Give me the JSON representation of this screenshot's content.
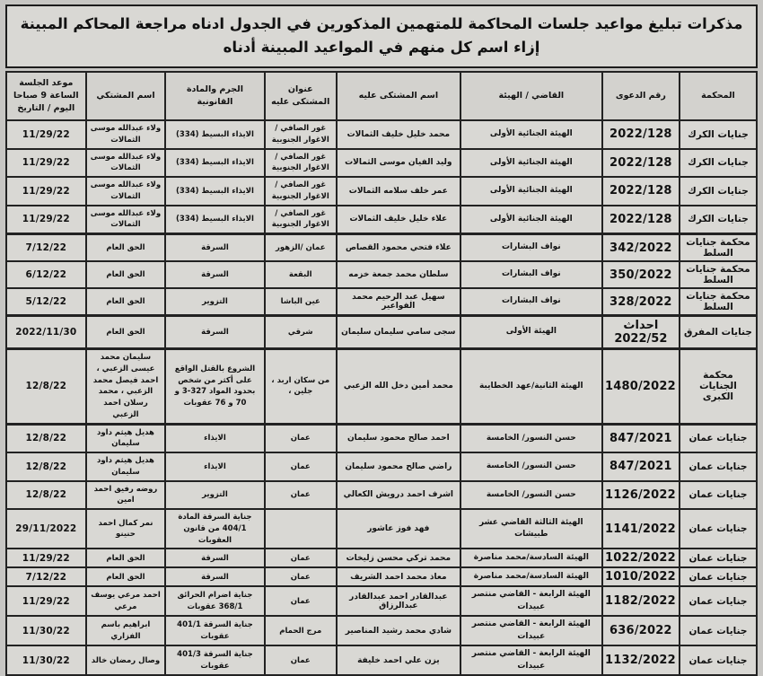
{
  "title": "مذكرات تبليغ مواعيد جلسات المحاكمة للمتهمين المذكورين في الجدول ادناه مراجعة المحاكم المبينة إزاء اسم كل منهم في المواعيد المبينة أدناه",
  "table": {
    "columns": [
      {
        "key": "court",
        "label": "المحكمة"
      },
      {
        "key": "case_number",
        "label": "رقم الدعوى"
      },
      {
        "key": "judge_panel",
        "label": "القاضي / الهيئة"
      },
      {
        "key": "defendant_name",
        "label": "اسم المشتكى عليه"
      },
      {
        "key": "defendant_address",
        "label": "عنوان المشتكى عليه"
      },
      {
        "key": "crime_article",
        "label": "الجرم والمادة القانونية"
      },
      {
        "key": "complainant_name",
        "label": "اسم المشتكي"
      },
      {
        "key": "session_date",
        "label": "موعد الجلسة الساعة 9 صباحا اليوم / التاريخ"
      }
    ],
    "rows": [
      [
        "جنايات الكرك",
        "2022/128",
        "الهيئة الجنائية الأولى",
        "محمد خليل خليف الثمالات",
        "غور الصافي /الاغوار الجنوبية",
        "الايذاء البسيط (334)",
        "ولاء عبدالله موسى الثمالات",
        "11/29/22"
      ],
      [
        "جنايات الكرك",
        "2022/128",
        "الهيئة الجنائية الأولى",
        "وليد الفيان موسى الثمالات",
        "غور الصافي /الاغوار الجنوبية",
        "الايذاء البسيط (334)",
        "ولاء عبدالله موسى الثمالات",
        "11/29/22"
      ],
      [
        "جنايات الكرك",
        "2022/128",
        "الهيئة الجنائية الأولى",
        "عمر خلف سلامه الثمالات",
        "غور الصافي /الاغوار الجنوبية",
        "الايذاء البسيط (334)",
        "ولاء عبدالله موسى الثمالات",
        "11/29/22"
      ],
      [
        "جنايات الكرك",
        "2022/128",
        "الهيئة الجنائية الأولى",
        "علاء خليل خليف الثمالات",
        "غور الصافي /الاغوار الجنوبية",
        "الايذاء البسيط (334)",
        "ولاء عبدالله موسى الثمالات",
        "11/29/22"
      ],
      [
        "محكمة جنايات السلط",
        "342/2022",
        "نواف البشارات",
        "علاء فتحي محمود القصاص",
        "عمان /الزهور",
        "السرقة",
        "الحق العام",
        "7/12/22"
      ],
      [
        "محكمة جنايات السلط",
        "350/2022",
        "نواف البشارات",
        "سلطان محمد جمعة خزمه",
        "البقعة",
        "السرقة",
        "الحق العام",
        "6/12/22"
      ],
      [
        "محكمة جنايات السلط",
        "328/2022",
        "نواف البشارات",
        "سهيل عبد الرحيم محمد الفواعير",
        "عين الباشا",
        "التزوير",
        "الحق العام",
        "5/12/22"
      ],
      [
        "جنايات المفرق",
        "احداث 2022/52",
        "الهيئة الأولى",
        "سجى سامي سليمان سليمان",
        "شرقي",
        "السرقة",
        "الحق العام",
        "2022/11/30"
      ],
      [
        "محكمة الجنايات الكبرى",
        "1480/2022",
        "الهيئة الثانية/عهد الخطايبة",
        "محمد أمين دخل الله الزعبي",
        "من سكان اربد ، جلين ،",
        "الشروع بالقتل الواقع على أكثر من شخص بحدود المواد 327-3 و 70 و 76 عقوبات",
        "سليمان محمد عيسى الزعبي ، احمد فيصل محمد الزعبي ، محمد رسلان احمد الزعبي",
        "12/8/22"
      ],
      [
        "جنايات عمان",
        "847/2021",
        "حسن النسور/ الخامسة",
        "احمد صالح محمود سليمان",
        "عمان",
        "الايذاء",
        "هديل هيثم داود سليمان",
        "12/8/22"
      ],
      [
        "جنايات عمان",
        "847/2021",
        "حسن النسور/ الخامسة",
        "راضي صالح محمود سليمان",
        "عمان",
        "الايذاء",
        "هديل هيثم داود سليمان",
        "12/8/22"
      ],
      [
        "جنايات عمان",
        "1126/2022",
        "حسن النسور/ الخامسة",
        "اشرف احمد درويش الكعالي",
        "عمان",
        "التزوير",
        "روضه رفيق احمد امين",
        "12/8/22"
      ],
      [
        "جنايات عمان",
        "1141/2022",
        "الهيئة الثالثة القاضي عشر طبيشات",
        "فهد فوز عاشور",
        "",
        "جناية السرقة المادة 404/1 من قانون العقوبات",
        "نمر كمال احمد حنينو",
        "29/11/2022"
      ],
      [
        "جنايات عمان",
        "1022/2022",
        "الهيئة السادسة/محمد مناصرة",
        "محمد تركي محسن زليخات",
        "عمان",
        "السرقة",
        "الحق العام",
        "11/29/22"
      ],
      [
        "جنايات عمان",
        "1010/2022",
        "الهيئة السادسة/محمد مناصرة",
        "معاذ محمد احمد الشريف",
        "عمان",
        "السرقة",
        "الحق العام",
        "7/12/22"
      ],
      [
        "جنايات عمان",
        "1182/2022",
        "الهيئة الرابعة - القاضي منتصر عبيدات",
        "عبدالقادر احمد عبدالقادر عبدالرزاق",
        "عمان",
        "جناية اضرام الحرائق 368/1 عقوبات",
        "احمد مرعي يوسف مرعي",
        "11/29/22"
      ],
      [
        "جنايات عمان",
        "636/2022",
        "الهيئة الرابعة - القاضي منتصر عبيدات",
        "شادي محمد رشيد المناصير",
        "مرج الحمام",
        "جناية السرقة 401/1 عقوبات",
        "ابراهيم باسم الفزاري",
        "11/30/22"
      ],
      [
        "جنايات عمان",
        "1132/2022",
        "الهيئة الرابعة - القاضي منتصر عبيدات",
        "يزن علي احمد خليفة",
        "عمان",
        "جناية السرقة 401/3 عقوبات",
        "وصال رمضان خالد",
        "11/30/22"
      ]
    ]
  }
}
